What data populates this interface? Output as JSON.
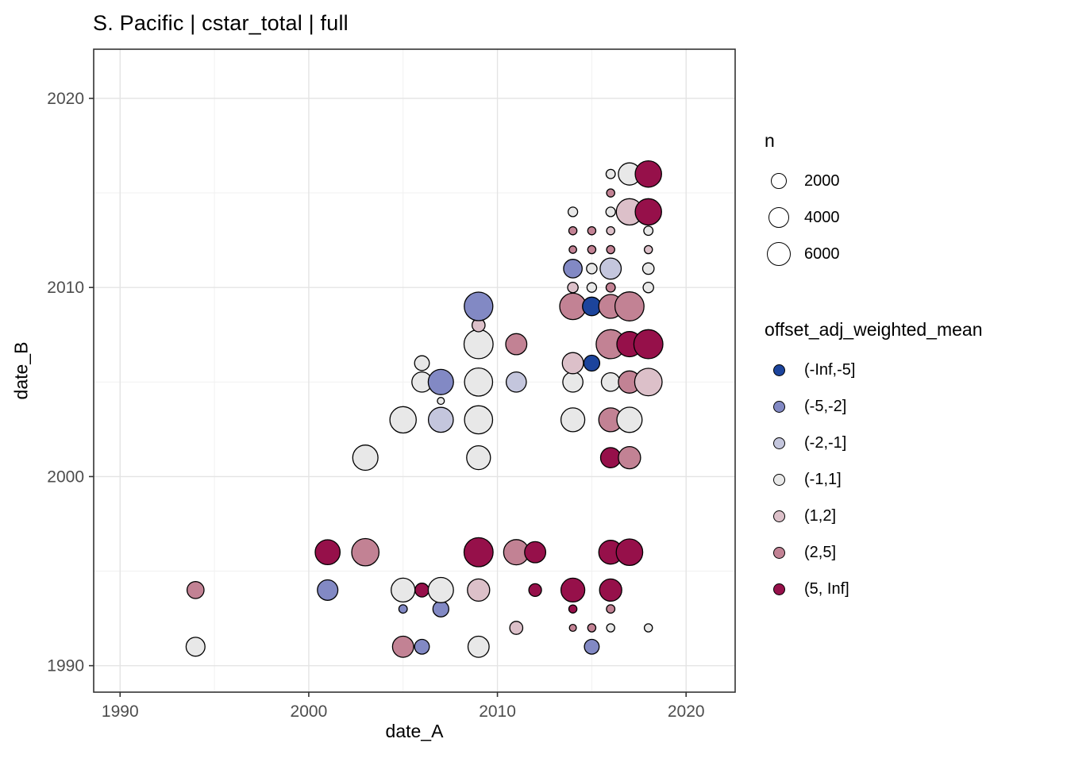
{
  "chart_data": {
    "type": "scatter",
    "title": "S. Pacific | cstar_total | full",
    "xlabel": "date_A",
    "ylabel": "date_B",
    "xlim": [
      1988.6,
      2022.6
    ],
    "ylim": [
      1988.6,
      2022.6
    ],
    "x_major_ticks": [
      1990,
      2000,
      2010,
      2020
    ],
    "x_minor_ticks": [
      1995,
      2005,
      2015
    ],
    "y_major_ticks": [
      1990,
      2000,
      2010,
      2020
    ],
    "y_minor_ticks": [
      1995,
      2005,
      2015
    ],
    "grid": {
      "major_color": "#e4e4e4",
      "minor_color": "#f1f1f1"
    },
    "panel_border_color": "#333333",
    "tick_color": "#333333",
    "tick_label_color": "#4d4d4d",
    "size_scale": {
      "title": "n",
      "breaks": [
        2000,
        4000,
        6000
      ]
    },
    "color_scale": {
      "title": "offset_adj_weighted_mean",
      "bins": [
        {
          "label": "(-Inf,-5]",
          "color": "#1c449c"
        },
        {
          "label": "(-5,-2]",
          "color": "#8289c4"
        },
        {
          "label": "(-2,-1]",
          "color": "#c4c6dd"
        },
        {
          "label": "(-1,1]",
          "color": "#e8e8e8"
        },
        {
          "label": "(1,2]",
          "color": "#dcc0c9"
        },
        {
          "label": "(2,5]",
          "color": "#c28294"
        },
        {
          "label": "(5, Inf]",
          "color": "#96104a"
        }
      ]
    },
    "points_format": [
      "date_A",
      "date_B",
      "bin_index",
      "n"
    ],
    "points": [
      [
        1994,
        1991,
        3,
        3300
      ],
      [
        1994,
        1994,
        5,
        2400
      ],
      [
        2001,
        1994,
        1,
        4100
      ],
      [
        2001,
        1996,
        6,
        6700
      ],
      [
        2003,
        1996,
        5,
        8500
      ],
      [
        2003,
        2001,
        3,
        7000
      ],
      [
        2005,
        1991,
        5,
        4400
      ],
      [
        2005,
        1993,
        1,
        200
      ],
      [
        2005,
        1994,
        3,
        6000
      ],
      [
        2005,
        2003,
        3,
        7800
      ],
      [
        2006,
        1991,
        1,
        1600
      ],
      [
        2006,
        1994,
        6,
        1300
      ],
      [
        2006,
        2005,
        3,
        3900
      ],
      [
        2006,
        2006,
        3,
        1600
      ],
      [
        2007,
        1993,
        1,
        2000
      ],
      [
        2007,
        1994,
        3,
        7000
      ],
      [
        2007,
        2003,
        2,
        6700
      ],
      [
        2007,
        2004,
        3,
        60
      ],
      [
        2007,
        2005,
        1,
        7000
      ],
      [
        2009,
        1991,
        3,
        4400
      ],
      [
        2009,
        1994,
        4,
        5000
      ],
      [
        2009,
        1996,
        6,
        9800
      ],
      [
        2009,
        2001,
        3,
        6000
      ],
      [
        2009,
        2003,
        3,
        9100
      ],
      [
        2009,
        2005,
        3,
        9100
      ],
      [
        2009,
        2007,
        3,
        9800
      ],
      [
        2009,
        2008,
        4,
        1100
      ],
      [
        2009,
        2009,
        1,
        9400
      ],
      [
        2011,
        1992,
        4,
        1100
      ],
      [
        2011,
        1996,
        5,
        7000
      ],
      [
        2011,
        2005,
        2,
        3900
      ],
      [
        2011,
        2007,
        5,
        4400
      ],
      [
        2012,
        1994,
        6,
        1000
      ],
      [
        2012,
        1996,
        6,
        4400
      ],
      [
        2014,
        1992,
        5,
        60
      ],
      [
        2014,
        1993,
        6,
        150
      ],
      [
        2014,
        1994,
        6,
        6000
      ],
      [
        2014,
        2003,
        3,
        6000
      ],
      [
        2014,
        2005,
        3,
        3900
      ],
      [
        2014,
        2006,
        4,
        4400
      ],
      [
        2014,
        2009,
        5,
        7800
      ],
      [
        2014,
        2010,
        4,
        500
      ],
      [
        2014,
        2011,
        1,
        3100
      ],
      [
        2014,
        2012,
        5,
        100
      ],
      [
        2014,
        2013,
        5,
        150
      ],
      [
        2014,
        2014,
        3,
        350
      ],
      [
        2015,
        1991,
        1,
        1600
      ],
      [
        2015,
        1992,
        5,
        150
      ],
      [
        2015,
        2006,
        0,
        2000
      ],
      [
        2015,
        2009,
        0,
        3100
      ],
      [
        2015,
        2010,
        3,
        350
      ],
      [
        2015,
        2011,
        3,
        500
      ],
      [
        2015,
        2012,
        5,
        150
      ],
      [
        2015,
        2013,
        5,
        150
      ],
      [
        2016,
        1992,
        3,
        150
      ],
      [
        2016,
        1993,
        5,
        200
      ],
      [
        2016,
        1994,
        6,
        5000
      ],
      [
        2016,
        1996,
        6,
        6000
      ],
      [
        2016,
        2001,
        6,
        3900
      ],
      [
        2016,
        2003,
        5,
        6000
      ],
      [
        2016,
        2005,
        3,
        3100
      ],
      [
        2016,
        2007,
        5,
        9800
      ],
      [
        2016,
        2009,
        5,
        6000
      ],
      [
        2016,
        2010,
        5,
        300
      ],
      [
        2016,
        2011,
        2,
        4400
      ],
      [
        2016,
        2012,
        5,
        150
      ],
      [
        2016,
        2013,
        4,
        150
      ],
      [
        2016,
        2014,
        3,
        350
      ],
      [
        2016,
        2015,
        5,
        150
      ],
      [
        2016,
        2016,
        3,
        300
      ],
      [
        2017,
        1996,
        6,
        7900
      ],
      [
        2017,
        2001,
        5,
        5000
      ],
      [
        2017,
        2003,
        3,
        7000
      ],
      [
        2017,
        2005,
        5,
        5000
      ],
      [
        2017,
        2007,
        6,
        7000
      ],
      [
        2017,
        2009,
        5,
        9800
      ],
      [
        2017,
        2014,
        4,
        7800
      ],
      [
        2017,
        2016,
        3,
        5000
      ],
      [
        2018,
        1992,
        3,
        150
      ],
      [
        2018,
        2005,
        4,
        8600
      ],
      [
        2018,
        2007,
        6,
        9800
      ],
      [
        2018,
        2010,
        3,
        500
      ],
      [
        2018,
        2011,
        3,
        700
      ],
      [
        2018,
        2012,
        4,
        150
      ],
      [
        2018,
        2013,
        3,
        300
      ],
      [
        2018,
        2014,
        6,
        7800
      ],
      [
        2018,
        2016,
        6,
        7800
      ]
    ]
  }
}
